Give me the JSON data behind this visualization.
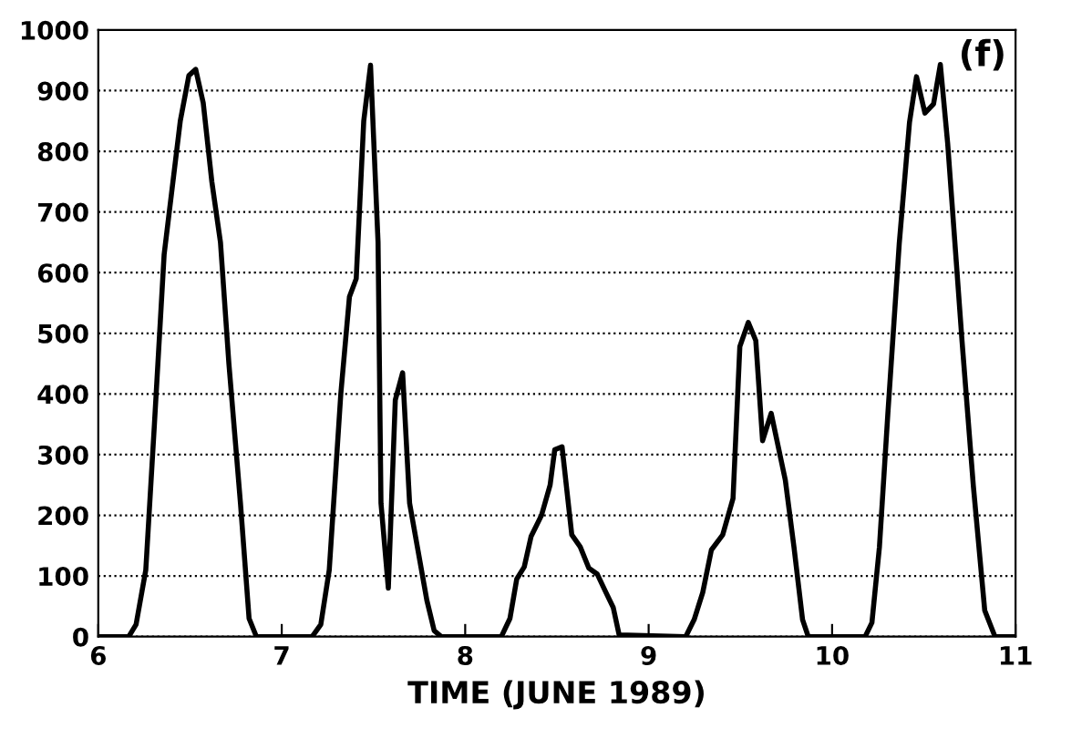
{
  "chart_data": {
    "type": "line",
    "xlabel": "TIME (JUNE 1989)",
    "annotations": [
      "(f)"
    ],
    "x": [
      6.0,
      6.166,
      6.206,
      6.259,
      6.306,
      6.359,
      6.447,
      6.494,
      6.531,
      6.572,
      6.619,
      6.666,
      6.712,
      6.775,
      6.822,
      6.862,
      7.166,
      7.213,
      7.259,
      7.322,
      7.369,
      7.406,
      7.447,
      7.484,
      7.525,
      7.541,
      7.581,
      7.619,
      7.659,
      7.697,
      7.744,
      7.791,
      7.831,
      7.869,
      8.197,
      8.244,
      8.281,
      8.322,
      8.359,
      8.416,
      8.463,
      8.488,
      8.528,
      8.581,
      8.627,
      8.674,
      8.72,
      8.767,
      8.807,
      8.839,
      9.202,
      9.248,
      9.295,
      9.342,
      9.404,
      9.46,
      9.497,
      9.543,
      9.584,
      9.621,
      9.668,
      9.745,
      9.792,
      9.839,
      9.87,
      10.18,
      10.217,
      10.258,
      10.304,
      10.366,
      10.422,
      10.46,
      10.506,
      10.553,
      10.59,
      10.63,
      10.708,
      10.77,
      10.832,
      10.888,
      11.0
    ],
    "series": [
      {
        "color": "#000000",
        "values": [
          0,
          0,
          20,
          110,
          350,
          630,
          850,
          925,
          935,
          880,
          750,
          650,
          450,
          220,
          30,
          0,
          0,
          20,
          110,
          400,
          560,
          590,
          850,
          942,
          650,
          220,
          80,
          390,
          435,
          220,
          140,
          60,
          10,
          0,
          0,
          30,
          95,
          115,
          165,
          200,
          250,
          308,
          313,
          168,
          148,
          113,
          103,
          73,
          48,
          3,
          0,
          28,
          73,
          143,
          168,
          228,
          478,
          518,
          488,
          323,
          368,
          258,
          148,
          28,
          0,
          0,
          23,
          148,
          368,
          648,
          848,
          923,
          863,
          878,
          943,
          813,
          488,
          248,
          43,
          0,
          0
        ]
      }
    ],
    "xlim": [
      6,
      11
    ],
    "xticks": [
      6,
      7,
      8,
      9,
      10,
      11
    ],
    "ylim": [
      0,
      1000
    ],
    "yticks": [
      0,
      100,
      200,
      300,
      400,
      500,
      600,
      700,
      800,
      900,
      1000
    ],
    "grid": "y",
    "legend": false,
    "marker": "none",
    "line_style": "solid"
  }
}
